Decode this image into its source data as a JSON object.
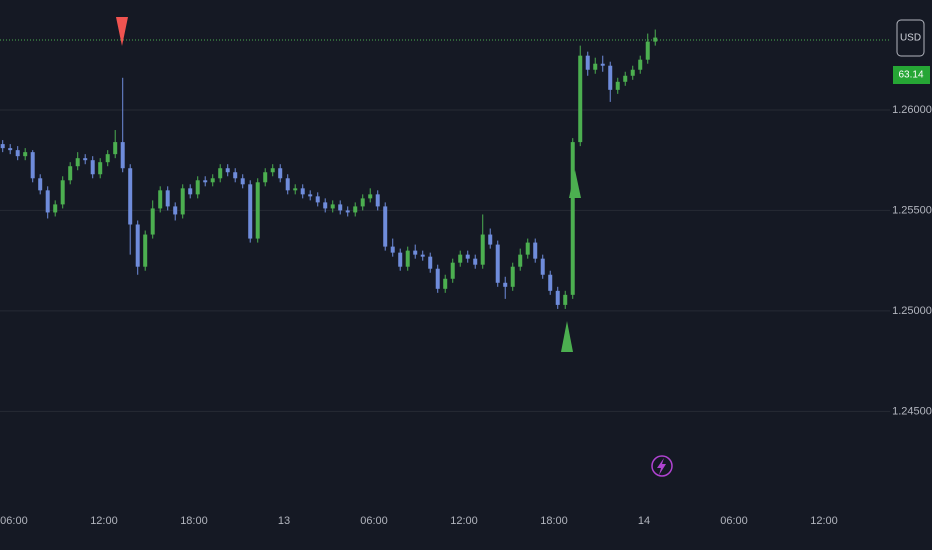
{
  "chart_data": {
    "type": "candlestick",
    "currency_label": "USD",
    "price_tag": "63.14",
    "up_color": "#4caf50",
    "down_color": "#6f8cdb",
    "price_line": 1.26348,
    "price_line_color": "#4caf50",
    "grid": true,
    "xlim": [
      5.07,
      64.4
    ],
    "ylim": [
      1.24109,
      1.26547
    ],
    "yticks": [
      {
        "value": 1.245,
        "label": "1.24500"
      },
      {
        "value": 1.25,
        "label": "1.25000"
      },
      {
        "value": 1.255,
        "label": "1.25500"
      },
      {
        "value": 1.26,
        "label": "1.26000"
      }
    ],
    "xticks": [
      {
        "value": 6,
        "label": "06:00"
      },
      {
        "value": 12,
        "label": "12:00"
      },
      {
        "value": 18,
        "label": "18:00"
      },
      {
        "value": 24,
        "label": "13"
      },
      {
        "value": 30,
        "label": "06:00"
      },
      {
        "value": 36,
        "label": "12:00"
      },
      {
        "value": 42,
        "label": "18:00"
      },
      {
        "value": 48,
        "label": "14"
      },
      {
        "value": 54,
        "label": "06:00"
      },
      {
        "value": 60,
        "label": "12:00"
      }
    ],
    "x": [
      5.25,
      5.75,
      6.25,
      6.75,
      7.25,
      7.75,
      8.25,
      8.75,
      9.25,
      9.75,
      10.25,
      10.75,
      11.25,
      11.75,
      12.25,
      12.75,
      13.25,
      13.75,
      14.25,
      14.75,
      15.25,
      15.75,
      16.25,
      16.75,
      17.25,
      17.75,
      18.25,
      18.75,
      19.25,
      19.75,
      20.25,
      20.75,
      21.25,
      21.75,
      22.25,
      22.75,
      23.25,
      23.75,
      24.25,
      24.75,
      25.25,
      25.75,
      26.25,
      26.75,
      27.25,
      27.75,
      28.25,
      28.75,
      29.25,
      29.75,
      30.25,
      30.75,
      31.25,
      31.75,
      32.25,
      32.75,
      33.25,
      33.75,
      34.25,
      34.75,
      35.25,
      35.75,
      36.25,
      36.75,
      37.25,
      37.75,
      38.25,
      38.75,
      39.25,
      39.75,
      40.25,
      40.75,
      41.25,
      41.75,
      42.25,
      42.75,
      43.25,
      43.75,
      44.25,
      44.75,
      45.25,
      45.75,
      46.25,
      46.75,
      47.25,
      47.75,
      48.25,
      48.75
    ],
    "open": [
      1.2583,
      1.2581,
      1.258,
      1.2577,
      1.2579,
      1.2566,
      1.256,
      1.2549,
      1.2553,
      1.2565,
      1.2572,
      1.2576,
      1.2575,
      1.2568,
      1.2574,
      1.2578,
      1.2584,
      1.2571,
      1.2543,
      1.2522,
      1.2538,
      1.2551,
      1.256,
      1.2552,
      1.2548,
      1.2561,
      1.2558,
      1.2565,
      1.2564,
      1.2566,
      1.2571,
      1.2569,
      1.2566,
      1.2563,
      1.2536,
      1.2564,
      1.2569,
      1.2571,
      1.2566,
      1.256,
      1.2561,
      1.2558,
      1.2557,
      1.2554,
      1.2551,
      1.2553,
      1.255,
      1.2549,
      1.2552,
      1.2556,
      1.2558,
      1.2552,
      1.2532,
      1.2529,
      1.2522,
      1.253,
      1.2528,
      1.2527,
      1.2521,
      1.2511,
      1.2516,
      1.2524,
      1.2528,
      1.2526,
      1.2523,
      1.2538,
      1.2533,
      1.2514,
      1.2512,
      1.2522,
      1.2528,
      1.2534,
      1.2526,
      1.2518,
      1.251,
      1.2503,
      1.2508,
      1.2584,
      1.2627,
      1.262,
      1.2623,
      1.2622,
      1.261,
      1.2614,
      1.2617,
      1.262,
      1.2625,
      1.2634
    ],
    "high": [
      1.2585,
      1.2583,
      1.2582,
      1.2581,
      1.258,
      1.2568,
      1.2562,
      1.2555,
      1.2567,
      1.2574,
      1.2579,
      1.2578,
      1.2577,
      1.2576,
      1.258,
      1.259,
      1.2616,
      1.2573,
      1.2545,
      1.254,
      1.2555,
      1.2562,
      1.2562,
      1.2554,
      1.2563,
      1.2563,
      1.2567,
      1.2567,
      1.2568,
      1.2573,
      1.2573,
      1.2571,
      1.2568,
      1.2565,
      1.2566,
      1.2571,
      1.2573,
      1.2573,
      1.2568,
      1.2563,
      1.2563,
      1.256,
      1.2559,
      1.2556,
      1.2555,
      1.2555,
      1.2552,
      1.2554,
      1.2558,
      1.2561,
      1.256,
      1.2554,
      1.2536,
      1.2531,
      1.2532,
      1.2533,
      1.253,
      1.2529,
      1.2523,
      1.2518,
      1.2526,
      1.253,
      1.253,
      1.2528,
      1.2548,
      1.2541,
      1.2535,
      1.2517,
      1.2524,
      1.2531,
      1.2536,
      1.2536,
      1.2528,
      1.252,
      1.2512,
      1.251,
      1.2586,
      1.2632,
      1.2629,
      1.2626,
      1.2627,
      1.2624,
      1.2616,
      1.2619,
      1.2622,
      1.2627,
      1.2638,
      1.264
    ],
    "low": [
      1.2579,
      1.2578,
      1.2575,
      1.2575,
      1.2564,
      1.2558,
      1.2546,
      1.2547,
      1.2551,
      1.2563,
      1.257,
      1.2573,
      1.2566,
      1.2566,
      1.2572,
      1.2576,
      1.2569,
      1.2528,
      1.2518,
      1.252,
      1.2536,
      1.2549,
      1.255,
      1.2545,
      1.2546,
      1.2556,
      1.2556,
      1.2562,
      1.2562,
      1.2564,
      1.2567,
      1.2564,
      1.2561,
      1.2534,
      1.2534,
      1.2562,
      1.2567,
      1.2564,
      1.2558,
      1.2558,
      1.2556,
      1.2555,
      1.2552,
      1.2549,
      1.2549,
      1.2548,
      1.2547,
      1.2547,
      1.255,
      1.2554,
      1.255,
      1.253,
      1.2527,
      1.252,
      1.252,
      1.2526,
      1.2525,
      1.2519,
      1.2509,
      1.2509,
      1.2514,
      1.2522,
      1.2524,
      1.2521,
      1.2521,
      1.2531,
      1.2512,
      1.2506,
      1.251,
      1.252,
      1.2526,
      1.2524,
      1.2516,
      1.2508,
      1.2501,
      1.2501,
      1.2506,
      1.2582,
      1.2617,
      1.2618,
      1.2619,
      1.2604,
      1.2608,
      1.2612,
      1.2615,
      1.2618,
      1.2623,
      1.2632
    ],
    "close": [
      1.2581,
      1.258,
      1.2577,
      1.2579,
      1.2566,
      1.256,
      1.2549,
      1.2553,
      1.2565,
      1.2572,
      1.2576,
      1.2575,
      1.2568,
      1.2574,
      1.2578,
      1.2584,
      1.2571,
      1.2543,
      1.2522,
      1.2538,
      1.2551,
      1.256,
      1.2552,
      1.2548,
      1.2561,
      1.2558,
      1.2565,
      1.2564,
      1.2566,
      1.2571,
      1.2569,
      1.2566,
      1.2563,
      1.2536,
      1.2564,
      1.2569,
      1.2571,
      1.2566,
      1.256,
      1.2561,
      1.2558,
      1.2557,
      1.2554,
      1.2551,
      1.2553,
      1.255,
      1.2549,
      1.2552,
      1.2556,
      1.2558,
      1.2552,
      1.2532,
      1.2529,
      1.2522,
      1.253,
      1.2528,
      1.2527,
      1.2521,
      1.2511,
      1.2516,
      1.2524,
      1.2528,
      1.2526,
      1.2523,
      1.2538,
      1.2533,
      1.2514,
      1.2512,
      1.2522,
      1.2528,
      1.2534,
      1.2526,
      1.2518,
      1.251,
      1.2503,
      1.2508,
      1.2584,
      1.2627,
      1.262,
      1.2623,
      1.2622,
      1.261,
      1.2614,
      1.2617,
      1.262,
      1.2625,
      1.2634,
      1.2636
    ]
  }
}
